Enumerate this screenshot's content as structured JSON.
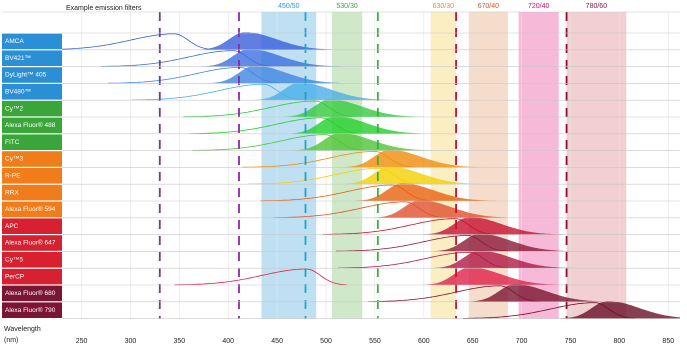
{
  "chart_data": {
    "type": "spectra",
    "header": "Example emission filters",
    "x_label": "Wavelength",
    "x_unit": "(nm)",
    "xlim": [
      230,
      862
    ],
    "xticks": [
      250,
      300,
      350,
      400,
      450,
      500,
      550,
      600,
      650,
      700,
      750,
      800,
      850
    ],
    "filters": [
      {
        "label": "450/50",
        "range": [
          434,
          490
        ],
        "color": "#bfe0f3",
        "label_color": "#2b9ad6"
      },
      {
        "label": "530/30",
        "range": [
          506,
          537
        ],
        "color": "#cfe8c8",
        "label_color": "#3aa63a"
      },
      {
        "label": "630/30",
        "range": [
          607,
          633
        ],
        "color": "#fbeec2",
        "label_color": "#f08c1a"
      },
      {
        "label": "670/40",
        "range": [
          646,
          686
        ],
        "color": "#f6dccb",
        "label_color": "#d6502a"
      },
      {
        "label": "720/40",
        "range": [
          697,
          738
        ],
        "color": "#f7b9d8",
        "label_color": "#c8106e"
      },
      {
        "label": "780/60",
        "range": [
          746,
          807
        ],
        "color": "#f2cfd0",
        "label_color": "#7a1535"
      }
    ],
    "lasers": [
      {
        "wavelength": 330,
        "color": "#6a3aa0"
      },
      {
        "wavelength": 411,
        "color": "#8a2aa8"
      },
      {
        "wavelength": 479,
        "color": "#1aa6c8"
      },
      {
        "wavelength": 553,
        "color": "#3ab03a"
      },
      {
        "wavelength": 633,
        "color": "#c8102e"
      },
      {
        "wavelength": 746,
        "color": "#8a1030"
      }
    ],
    "rows": [
      {
        "label": "AMCA",
        "label_color": "#2b8fd6",
        "color": "#3a5fd8",
        "excitation_peak": 345,
        "emission_peak": 417
      },
      {
        "label": "BV421™",
        "label_color": "#2b8fd6",
        "color": "#3b6fe0",
        "excitation_peak": 405,
        "emission_peak": 421
      },
      {
        "label": "DyLight™ 405",
        "label_color": "#2b8fd6",
        "color": "#3f86e0",
        "excitation_peak": 412,
        "emission_peak": 427
      },
      {
        "label": "BV480™",
        "label_color": "#2b8fd6",
        "color": "#4aaee8",
        "excitation_peak": 436,
        "emission_peak": 473
      },
      {
        "label": "Cy™2",
        "label_color": "#3aa63a",
        "color": "#35c940",
        "excitation_peak": 489,
        "emission_peak": 504
      },
      {
        "label": "Alexa Fluor® 488",
        "label_color": "#3aa63a",
        "color": "#22d02a",
        "excitation_peak": 495,
        "emission_peak": 509
      },
      {
        "label": "FITC",
        "label_color": "#3aa63a",
        "color": "#4cc634",
        "excitation_peak": 499,
        "emission_peak": 514
      },
      {
        "label": "Cy™3",
        "label_color": "#f07c1a",
        "color": "#f08c0a",
        "excitation_peak": 550,
        "emission_peak": 565
      },
      {
        "label": "R-PE",
        "label_color": "#f07c1a",
        "color": "#f4d000",
        "excitation_peak": 555,
        "emission_peak": 565
      },
      {
        "label": "RRX",
        "label_color": "#f07c1a",
        "color": "#e8600c",
        "excitation_peak": 568,
        "emission_peak": 578
      },
      {
        "label": "Alexa Fluor® 594",
        "label_color": "#f07c1a",
        "color": "#e05030",
        "excitation_peak": 581,
        "emission_peak": 596
      },
      {
        "label": "APC",
        "label_color": "#d72030",
        "color": "#c8102e",
        "excitation_peak": 632,
        "emission_peak": 647
      },
      {
        "label": "Alexa Fluor® 647",
        "label_color": "#d72030",
        "color": "#8b1a3a",
        "excitation_peak": 645,
        "emission_peak": 657
      },
      {
        "label": "Cy™5",
        "label_color": "#d72030",
        "color": "#b01845",
        "excitation_peak": 647,
        "emission_peak": 657
      },
      {
        "label": "PerCP",
        "label_color": "#d72030",
        "color": "#e0204a",
        "excitation_peak": 480,
        "emission_peak": 647
      },
      {
        "label": "Alexa Fluor® 680",
        "label_color": "#7a1535",
        "color": "#7a1530",
        "excitation_peak": 678,
        "emission_peak": 693
      },
      {
        "label": "Alexa Fluor® 790",
        "label_color": "#7a1535",
        "color": "#6a0f28",
        "excitation_peak": 775,
        "emission_peak": 788
      }
    ]
  }
}
